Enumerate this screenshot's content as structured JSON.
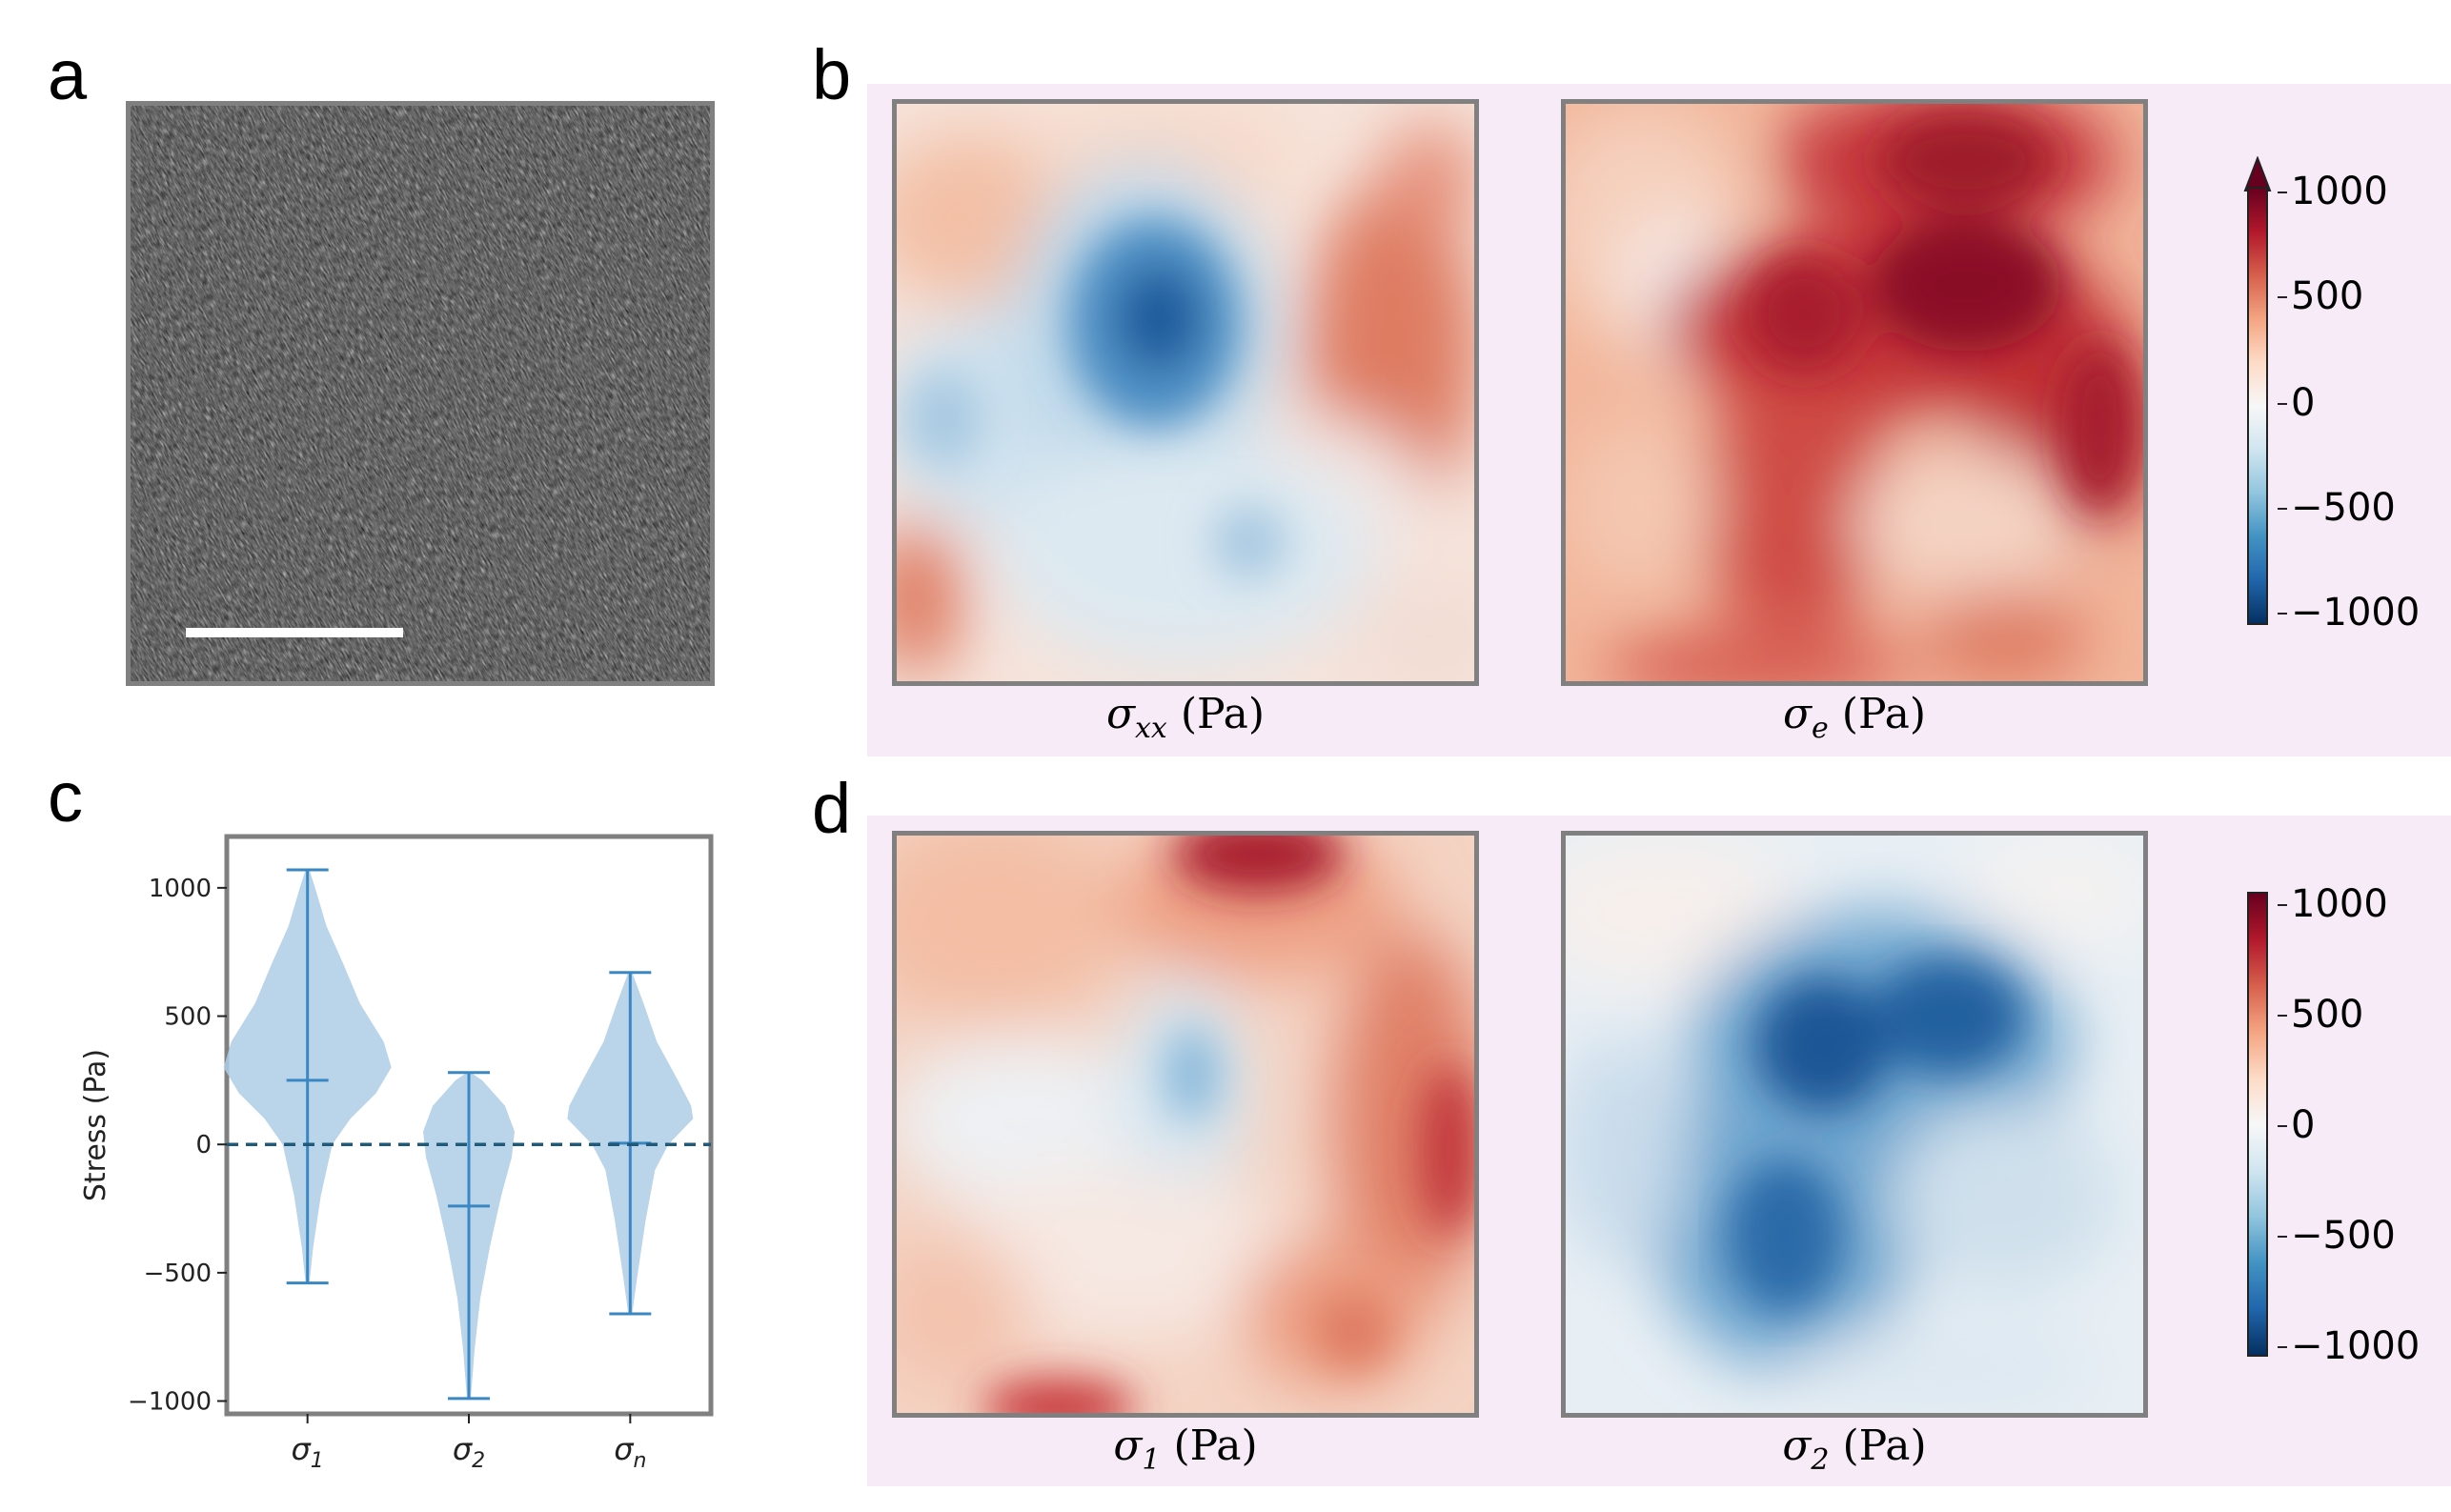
{
  "panels": {
    "a": "a",
    "b": "b",
    "c": "c",
    "d": "d"
  },
  "captions": {
    "sigma_xx": {
      "sym": "σ",
      "sub": "xx",
      "unit": "(Pa)"
    },
    "sigma_e": {
      "sym": "σ",
      "sub": "e",
      "unit": "(Pa)"
    },
    "sigma_1": {
      "sym": "σ",
      "sub": "1",
      "unit": "(Pa)"
    },
    "sigma_2": {
      "sym": "σ",
      "sub": "2",
      "unit": "(Pa)"
    }
  },
  "colorbar": {
    "ticks": [
      "1000",
      "500",
      "0",
      "−500",
      "−1000"
    ]
  },
  "colors": {
    "violin_fill": "#aecde6",
    "violin_line": "#3b87c4",
    "zero_line": "#1f5a7a",
    "pink_bg": "#f8ebf8"
  },
  "chart_data": {
    "type": "violin",
    "ylabel": "Stress (Pa)",
    "ylim": [
      -1050,
      1200
    ],
    "yticks": [
      1000,
      500,
      0,
      -500,
      -1000
    ],
    "ytick_labels": [
      "1000",
      "500",
      "0",
      "−500",
      "−1000"
    ],
    "categories": [
      "σ1",
      "σ2",
      "σn"
    ],
    "category_labels": [
      {
        "sym": "σ",
        "sub": "1"
      },
      {
        "sym": "σ",
        "sub": "2"
      },
      {
        "sym": "σ",
        "sub": "n"
      }
    ],
    "series": [
      {
        "min": -540,
        "median": 250,
        "max": 1070
      },
      {
        "min": -990,
        "median": -240,
        "max": 280
      },
      {
        "min": -660,
        "median": 5,
        "max": 670
      }
    ],
    "reference_line": 0
  }
}
